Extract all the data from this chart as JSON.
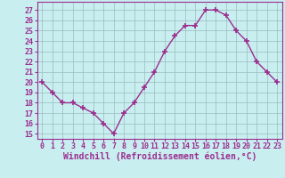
{
  "hours": [
    0,
    1,
    2,
    3,
    4,
    5,
    6,
    7,
    8,
    9,
    10,
    11,
    12,
    13,
    14,
    15,
    16,
    17,
    18,
    19,
    20,
    21,
    22,
    23
  ],
  "values": [
    20.0,
    19.0,
    18.0,
    18.0,
    17.5,
    17.0,
    16.0,
    15.0,
    17.0,
    18.0,
    19.5,
    21.0,
    23.0,
    24.5,
    25.5,
    25.5,
    27.0,
    27.0,
    26.5,
    25.0,
    24.0,
    22.0,
    21.0,
    20.0
  ],
  "line_color": "#9b2d8e",
  "marker": "+",
  "marker_size": 5,
  "marker_lw": 1.2,
  "bg_color": "#c8eef0",
  "grid_color": "#9bbcbe",
  "xlabel": "Windchill (Refroidissement éolien,°C)",
  "ylabel_ticks": [
    15,
    16,
    17,
    18,
    19,
    20,
    21,
    22,
    23,
    24,
    25,
    26,
    27
  ],
  "ylim": [
    14.5,
    27.8
  ],
  "xlim": [
    -0.5,
    23.5
  ],
  "tick_fontsize": 6.0,
  "xlabel_fontsize": 7.0
}
